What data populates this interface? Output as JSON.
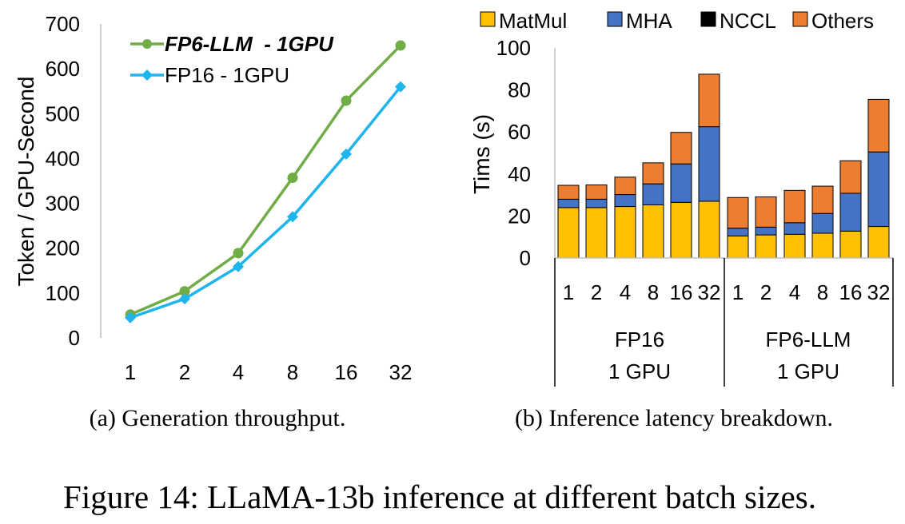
{
  "caption": {
    "subcaption_a": "(a) Generation throughput.",
    "subcaption_b": "(b) Inference latency breakdown.",
    "figure": "Figure 14: LLaMA-13b inference at different batch sizes."
  },
  "chart_data": [
    {
      "type": "line",
      "id": "throughput",
      "title": "",
      "xlabel": "",
      "ylabel": "Token / GPU-Second",
      "categories": [
        "1",
        "2",
        "4",
        "8",
        "16",
        "32"
      ],
      "ylim": [
        0,
        700
      ],
      "yticks": [
        0,
        100,
        200,
        300,
        400,
        500,
        600,
        700
      ],
      "grid": false,
      "legend_position": "top-left",
      "series": [
        {
          "name": "FP6-LLM  - 1GPU",
          "values": [
            52,
            104,
            189,
            357,
            529,
            652
          ],
          "color": "#70ad47",
          "marker": "circle",
          "legend_style": "bold-italic"
        },
        {
          "name": "FP16 - 1GPU",
          "values": [
            45,
            87,
            159,
            270,
            410,
            560
          ],
          "color": "#1eb4ec",
          "marker": "diamond",
          "legend_style": "normal"
        }
      ]
    },
    {
      "type": "bar",
      "stacked": true,
      "id": "latency",
      "title": "",
      "ylabel": "Tims (s)",
      "ylim": [
        0,
        100
      ],
      "yticks": [
        0,
        20,
        40,
        60,
        80,
        100
      ],
      "grid": false,
      "legend_position": "top",
      "groups": [
        {
          "line1": "FP16",
          "line2": "1 GPU",
          "categories": [
            "1",
            "2",
            "4",
            "8",
            "16",
            "32"
          ]
        },
        {
          "line1": "FP6-LLM",
          "line2": "1 GPU",
          "categories": [
            "1",
            "2",
            "4",
            "8",
            "16",
            "32"
          ]
        }
      ],
      "series": [
        {
          "name": "MatMul",
          "color": "#ffc000",
          "values": [
            24,
            24,
            24.5,
            25.3,
            26.5,
            27,
            10.5,
            11,
            11.3,
            11.8,
            12.8,
            15
          ]
        },
        {
          "name": "MHA",
          "color": "#4472c4",
          "values": [
            4,
            4,
            5.7,
            10,
            18.3,
            35.5,
            3.7,
            3.7,
            5.5,
            9.4,
            18,
            35.5
          ]
        },
        {
          "name": "NCCL",
          "color": "#000000",
          "values": [
            0,
            0,
            0,
            0,
            0,
            0,
            0,
            0,
            0,
            0,
            0,
            0
          ]
        },
        {
          "name": "Others",
          "color": "#ed7d31",
          "values": [
            6.6,
            6.8,
            8.3,
            10,
            15,
            25,
            14.6,
            14.4,
            15.4,
            13,
            15.5,
            25
          ]
        }
      ]
    }
  ]
}
